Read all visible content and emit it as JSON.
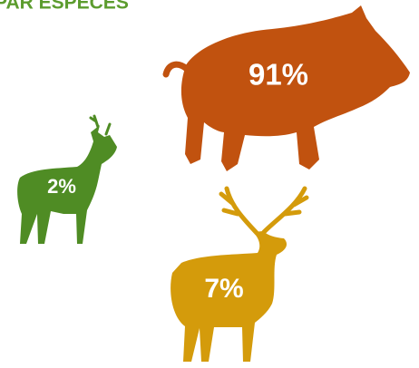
{
  "chart_data": {
    "type": "pictogram",
    "title": "PAR ESPECES",
    "categories": [
      null,
      null,
      null
    ],
    "values": [
      91,
      2,
      7
    ],
    "value_labels": [
      "91%",
      "2%",
      "7%"
    ],
    "colors": [
      "#c1520f",
      "#4f8c24",
      "#d49b0b"
    ]
  }
}
